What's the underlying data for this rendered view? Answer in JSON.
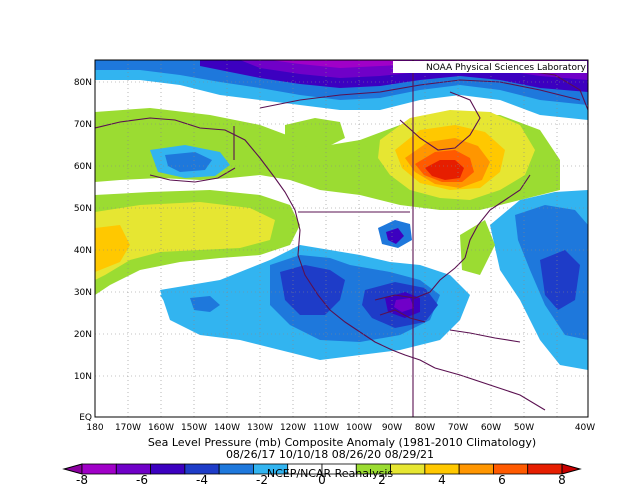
{
  "credit": "NOAA Physical Sciences Laboratory",
  "title_line1": "Sea Level Pressure (mb) Composite Anomaly (1981-2010 Climatology)",
  "title_line2": "08/26/17 10/10/18 08/26/20 08/29/21",
  "source": "NCEP/NCAR Reanalysis",
  "lat_labels": [
    "80N",
    "70N",
    "60N",
    "50N",
    "40N",
    "30N",
    "20N",
    "10N",
    "EQ"
  ],
  "lon_labels": [
    "180",
    "170W",
    "160W",
    "150W",
    "140W",
    "130W",
    "120W",
    "110W",
    "100W",
    "90W",
    "80W",
    "70W",
    "60W",
    "50W",
    "40W"
  ],
  "colorbar": {
    "tick_labels": [
      "-8",
      "-6",
      "-4",
      "-2",
      "0",
      "2",
      "4",
      "6",
      "8"
    ],
    "colors": [
      "#a000c8",
      "#7000c8",
      "#3c00c0",
      "#1e3cc8",
      "#1e78dc",
      "#32b4f0",
      "#ffffff",
      "#ffffff",
      "#9bdc32",
      "#e6e632",
      "#ffc800",
      "#ff9600",
      "#ff5a00",
      "#e61e00"
    ]
  },
  "chart_data": {
    "type": "heatmap",
    "variable": "Sea Level Pressure (mb) Composite Anomaly",
    "climatology": "1981-2010",
    "dates": [
      "08/26/17",
      "10/10/18",
      "08/26/20",
      "08/29/21"
    ],
    "lon_range": [
      "180",
      "40W"
    ],
    "lat_range": [
      "EQ",
      "85N"
    ],
    "color_range": [
      -8,
      8
    ],
    "contour_interval": 1
  }
}
